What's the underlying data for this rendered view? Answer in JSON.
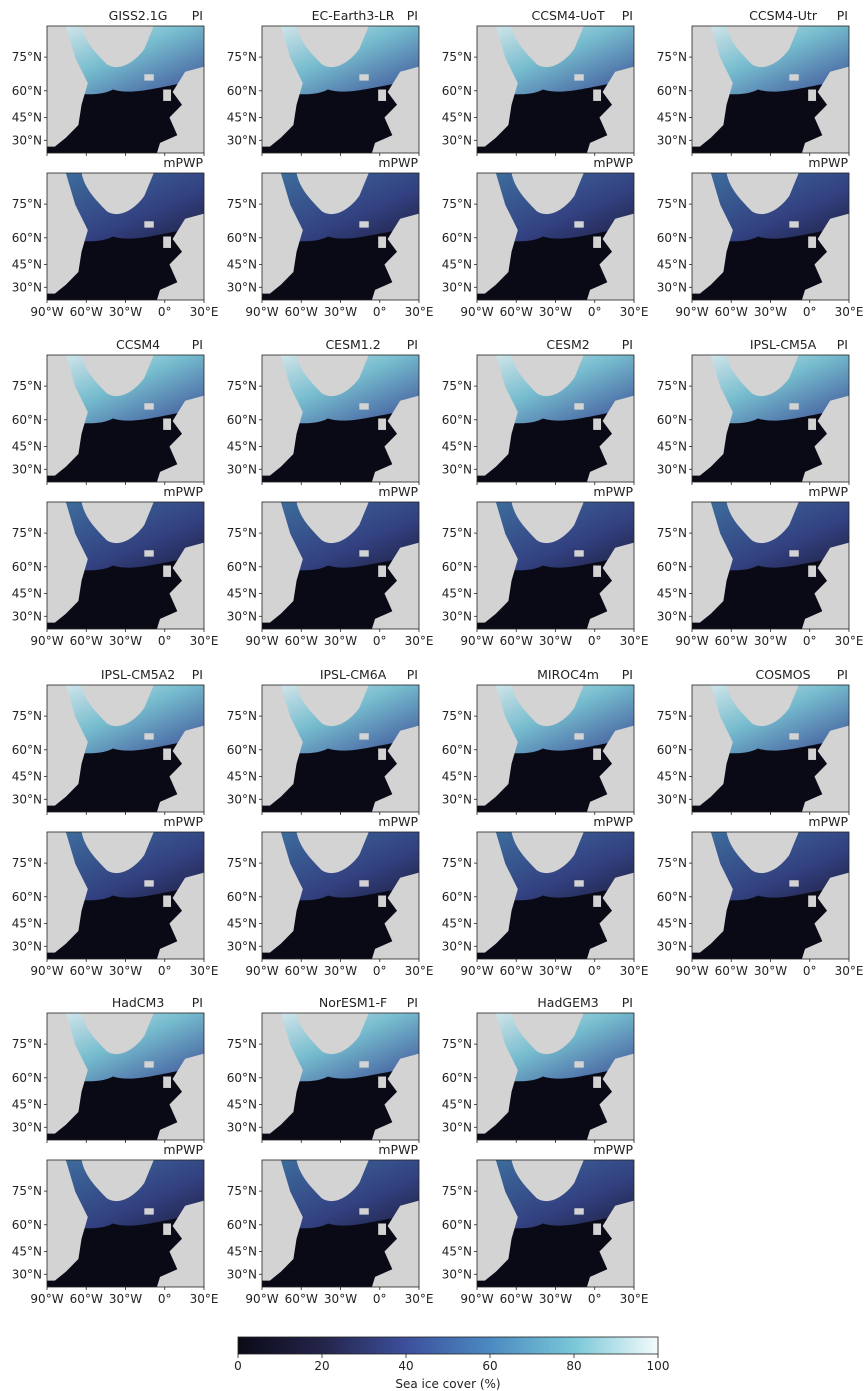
{
  "figure": {
    "colorbar": {
      "label": "Sea ice cover (%)",
      "ticks": [
        "0",
        "20",
        "40",
        "60",
        "80",
        "100"
      ],
      "range": [
        0,
        100
      ],
      "colors": [
        "#0a0a17",
        "#24244a",
        "#3d4f9c",
        "#4b8ac1",
        "#79c7d8",
        "#f4fbfc"
      ]
    },
    "land_color": "#d3d3d3",
    "axes": {
      "lat_ticks": [
        "75°N",
        "60°N",
        "45°N",
        "30°N"
      ],
      "lon_ticks": [
        "90°W",
        "60°W",
        "30°W",
        "0°",
        "30°E"
      ]
    }
  },
  "chart_data": {
    "type": "heatmap",
    "variable": "Sea ice cover (%)",
    "layout": "pairs of PI (top) and mPWP (bottom) panels per model",
    "lon_range": [
      "90°W",
      "30°E"
    ],
    "lat_range": [
      "~20°N",
      "~88°N"
    ],
    "periods": [
      "PI",
      "mPWP"
    ],
    "models": [
      {
        "name": "GISS2.1G",
        "pi_label": "PI",
        "mpwp_label": "mPWP"
      },
      {
        "name": "EC-Earth3-LR",
        "pi_label": "PI",
        "mpwp_label": "mPWP"
      },
      {
        "name": "CCSM4-UoT",
        "pi_label": "PI",
        "mpwp_label": "mPWP"
      },
      {
        "name": "CCSM4-Utr",
        "pi_label": "PI",
        "mpwp_label": "mPWP"
      },
      {
        "name": "CCSM4",
        "pi_label": "PI",
        "mpwp_label": "mPWP"
      },
      {
        "name": "CESM1.2",
        "pi_label": "PI",
        "mpwp_label": "mPWP"
      },
      {
        "name": "CESM2",
        "pi_label": "PI",
        "mpwp_label": "mPWP"
      },
      {
        "name": "IPSL-CM5A",
        "pi_label": "PI",
        "mpwp_label": "mPWP"
      },
      {
        "name": "IPSL-CM5A2",
        "pi_label": "PI",
        "mpwp_label": "mPWP"
      },
      {
        "name": "IPSL-CM6A",
        "pi_label": "PI",
        "mpwp_label": "mPWP"
      },
      {
        "name": "MIROC4m",
        "pi_label": "PI",
        "mpwp_label": "mPWP"
      },
      {
        "name": "COSMOS",
        "pi_label": "PI",
        "mpwp_label": "mPWP"
      },
      {
        "name": "HadCM3",
        "pi_label": "PI",
        "mpwp_label": "mPWP"
      },
      {
        "name": "NorESM1-F",
        "pi_label": "PI",
        "mpwp_label": "mPWP"
      },
      {
        "name": "HadGEM3",
        "pi_label": "PI",
        "mpwp_label": "mPWP"
      }
    ]
  }
}
